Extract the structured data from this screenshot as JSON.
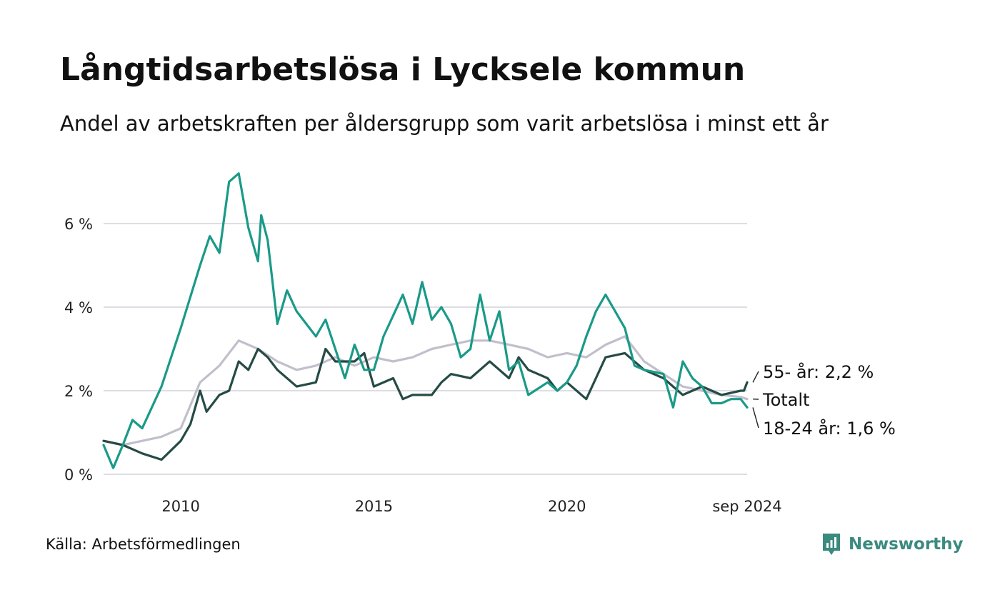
{
  "title": "Långtidsarbetslösa i Lycksele kommun",
  "subtitle": "Andel av arbetskraften per åldersgrupp som varit arbetslösa i minst ett år",
  "source": "Källa: Arbetsförmedlingen",
  "brand": {
    "name": "Newsworthy",
    "icon": "newsworthy-logo-icon",
    "color": "#3b8a80"
  },
  "chart_data": {
    "type": "line",
    "x_unit": "month",
    "x_range": [
      "2008-01",
      "2024-09"
    ],
    "ylim": [
      0,
      7.5
    ],
    "y_ticks": [
      {
        "value": 0,
        "label": "0 %"
      },
      {
        "value": 2,
        "label": "2 %"
      },
      {
        "value": 4,
        "label": "4 %"
      },
      {
        "value": 6,
        "label": "6 %"
      }
    ],
    "x_ticks": [
      {
        "value": "2010-01",
        "label": "2010"
      },
      {
        "value": "2015-01",
        "label": "2015"
      },
      {
        "value": "2020-01",
        "label": "2020"
      },
      {
        "value": "2024-09",
        "label": "sep 2024"
      }
    ],
    "grid": "horizontal",
    "legend": "direct labels at line ends (right)",
    "series": [
      {
        "key": "totalt",
        "name": "Totalt",
        "end_label": "Totalt",
        "color": "#c2bfcc",
        "points": [
          [
            "2008-01",
            0.8
          ],
          [
            "2008-07",
            0.7
          ],
          [
            "2009-01",
            0.8
          ],
          [
            "2009-07",
            0.9
          ],
          [
            "2010-01",
            1.1
          ],
          [
            "2010-07",
            2.2
          ],
          [
            "2011-01",
            2.6
          ],
          [
            "2011-07",
            3.2
          ],
          [
            "2012-01",
            3.0
          ],
          [
            "2012-07",
            2.7
          ],
          [
            "2013-01",
            2.5
          ],
          [
            "2013-07",
            2.6
          ],
          [
            "2014-01",
            2.8
          ],
          [
            "2014-07",
            2.6
          ],
          [
            "2015-01",
            2.8
          ],
          [
            "2015-07",
            2.7
          ],
          [
            "2016-01",
            2.8
          ],
          [
            "2016-07",
            3.0
          ],
          [
            "2017-01",
            3.1
          ],
          [
            "2017-07",
            3.2
          ],
          [
            "2018-01",
            3.2
          ],
          [
            "2018-07",
            3.1
          ],
          [
            "2019-01",
            3.0
          ],
          [
            "2019-07",
            2.8
          ],
          [
            "2020-01",
            2.9
          ],
          [
            "2020-07",
            2.8
          ],
          [
            "2021-01",
            3.1
          ],
          [
            "2021-07",
            3.3
          ],
          [
            "2022-01",
            2.7
          ],
          [
            "2022-07",
            2.4
          ],
          [
            "2023-01",
            2.1
          ],
          [
            "2023-07",
            2.0
          ],
          [
            "2024-01",
            1.9
          ],
          [
            "2024-07",
            1.85
          ],
          [
            "2024-09",
            1.8
          ]
        ]
      },
      {
        "key": "age55",
        "name": "55- år",
        "end_label": "55- år: 2,2 %",
        "color": "#254b45",
        "points": [
          [
            "2008-01",
            0.8
          ],
          [
            "2008-07",
            0.7
          ],
          [
            "2009-01",
            0.5
          ],
          [
            "2009-07",
            0.35
          ],
          [
            "2010-01",
            0.8
          ],
          [
            "2010-04",
            1.2
          ],
          [
            "2010-07",
            2.0
          ],
          [
            "2010-09",
            1.5
          ],
          [
            "2011-01",
            1.9
          ],
          [
            "2011-04",
            2.0
          ],
          [
            "2011-07",
            2.7
          ],
          [
            "2011-10",
            2.5
          ],
          [
            "2012-01",
            3.0
          ],
          [
            "2012-04",
            2.8
          ],
          [
            "2012-07",
            2.5
          ],
          [
            "2013-01",
            2.1
          ],
          [
            "2013-07",
            2.2
          ],
          [
            "2013-10",
            3.0
          ],
          [
            "2014-01",
            2.7
          ],
          [
            "2014-07",
            2.7
          ],
          [
            "2014-10",
            2.9
          ],
          [
            "2015-01",
            2.1
          ],
          [
            "2015-07",
            2.3
          ],
          [
            "2015-10",
            1.8
          ],
          [
            "2016-01",
            1.9
          ],
          [
            "2016-07",
            1.9
          ],
          [
            "2016-10",
            2.2
          ],
          [
            "2017-01",
            2.4
          ],
          [
            "2017-07",
            2.3
          ],
          [
            "2018-01",
            2.7
          ],
          [
            "2018-07",
            2.3
          ],
          [
            "2018-10",
            2.8
          ],
          [
            "2019-01",
            2.5
          ],
          [
            "2019-07",
            2.3
          ],
          [
            "2019-10",
            2.0
          ],
          [
            "2020-01",
            2.2
          ],
          [
            "2020-07",
            1.8
          ],
          [
            "2020-10",
            2.3
          ],
          [
            "2021-01",
            2.8
          ],
          [
            "2021-07",
            2.9
          ],
          [
            "2022-01",
            2.5
          ],
          [
            "2022-07",
            2.3
          ],
          [
            "2023-01",
            1.9
          ],
          [
            "2023-07",
            2.1
          ],
          [
            "2024-01",
            1.9
          ],
          [
            "2024-07",
            2.0
          ],
          [
            "2024-08",
            2.0
          ],
          [
            "2024-09",
            2.2
          ]
        ]
      },
      {
        "key": "age1824",
        "name": "18-24 år",
        "end_label": "18-24 år: 1,6 %",
        "color": "#1a9a88",
        "points": [
          [
            "2008-01",
            0.7
          ],
          [
            "2008-04",
            0.15
          ],
          [
            "2008-07",
            0.7
          ],
          [
            "2008-10",
            1.3
          ],
          [
            "2009-01",
            1.1
          ],
          [
            "2009-07",
            2.1
          ],
          [
            "2010-01",
            3.5
          ],
          [
            "2010-07",
            5.0
          ],
          [
            "2010-10",
            5.7
          ],
          [
            "2011-01",
            5.3
          ],
          [
            "2011-04",
            7.0
          ],
          [
            "2011-07",
            7.2
          ],
          [
            "2011-10",
            5.9
          ],
          [
            "2012-01",
            5.1
          ],
          [
            "2012-02",
            6.2
          ],
          [
            "2012-04",
            5.6
          ],
          [
            "2012-07",
            3.6
          ],
          [
            "2012-10",
            4.4
          ],
          [
            "2013-01",
            3.9
          ],
          [
            "2013-07",
            3.3
          ],
          [
            "2013-10",
            3.7
          ],
          [
            "2014-01",
            3.0
          ],
          [
            "2014-04",
            2.3
          ],
          [
            "2014-07",
            3.1
          ],
          [
            "2014-10",
            2.5
          ],
          [
            "2015-01",
            2.5
          ],
          [
            "2015-04",
            3.3
          ],
          [
            "2015-07",
            3.8
          ],
          [
            "2015-10",
            4.3
          ],
          [
            "2016-01",
            3.6
          ],
          [
            "2016-04",
            4.6
          ],
          [
            "2016-07",
            3.7
          ],
          [
            "2016-10",
            4.0
          ],
          [
            "2017-01",
            3.6
          ],
          [
            "2017-04",
            2.8
          ],
          [
            "2017-07",
            3.0
          ],
          [
            "2017-10",
            4.3
          ],
          [
            "2018-01",
            3.2
          ],
          [
            "2018-04",
            3.9
          ],
          [
            "2018-07",
            2.5
          ],
          [
            "2018-10",
            2.7
          ],
          [
            "2019-01",
            1.9
          ],
          [
            "2019-07",
            2.2
          ],
          [
            "2019-10",
            2.0
          ],
          [
            "2020-01",
            2.2
          ],
          [
            "2020-04",
            2.6
          ],
          [
            "2020-07",
            3.3
          ],
          [
            "2020-10",
            3.9
          ],
          [
            "2021-01",
            4.3
          ],
          [
            "2021-07",
            3.5
          ],
          [
            "2021-10",
            2.6
          ],
          [
            "2022-01",
            2.5
          ],
          [
            "2022-07",
            2.4
          ],
          [
            "2022-10",
            1.6
          ],
          [
            "2023-01",
            2.7
          ],
          [
            "2023-04",
            2.3
          ],
          [
            "2023-07",
            2.1
          ],
          [
            "2023-10",
            1.7
          ],
          [
            "2024-01",
            1.7
          ],
          [
            "2024-04",
            1.8
          ],
          [
            "2024-07",
            1.8
          ],
          [
            "2024-09",
            1.6
          ]
        ]
      }
    ]
  }
}
